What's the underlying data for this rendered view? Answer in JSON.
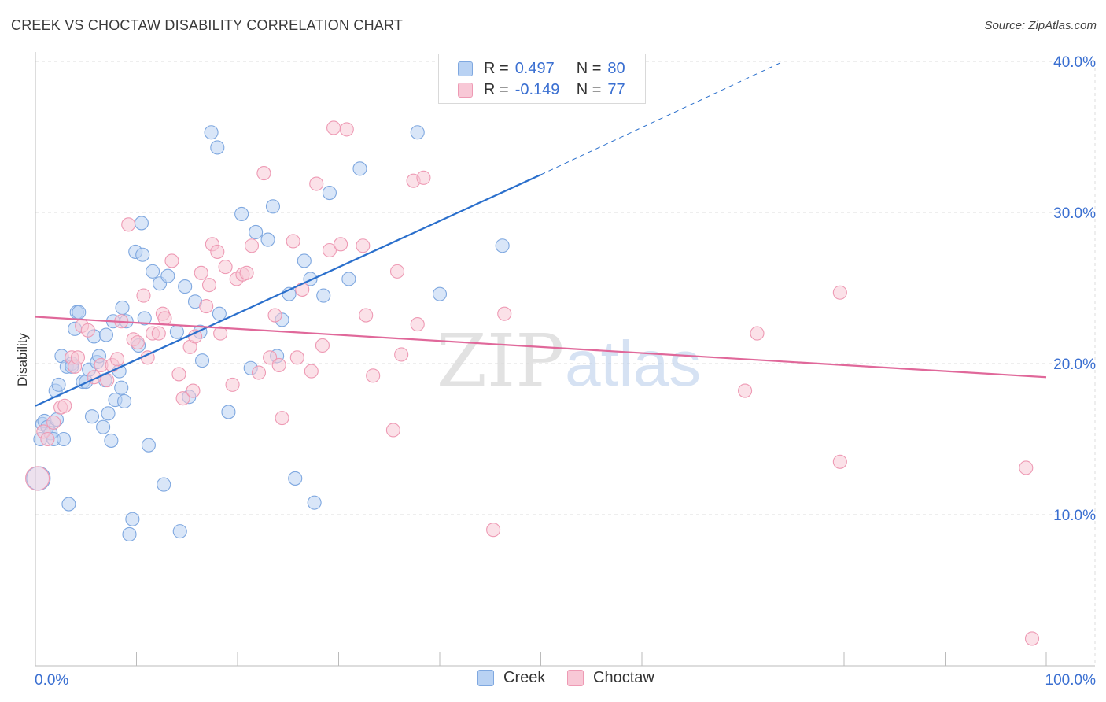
{
  "header": {
    "title": "CREEK VS CHOCTAW DISABILITY CORRELATION CHART",
    "source": "Source: ZipAtlas.com"
  },
  "legend": {
    "rows": [
      {
        "r_label": "R =",
        "r_value": "0.497",
        "n_label": "N =",
        "n_value": "80"
      },
      {
        "r_label": "R =",
        "r_value": "-0.149",
        "n_label": "N =",
        "n_value": "77"
      }
    ]
  },
  "bottom_legend": {
    "items": [
      "Creek",
      "Choctaw"
    ]
  },
  "watermark": "ZIPatlas",
  "colors": {
    "creek_fill": "#b9d2f3",
    "creek_stroke": "#7fa8e0",
    "creek_line": "#2a6fcc",
    "choctaw_fill": "#f8c8d6",
    "choctaw_stroke": "#ee9ab4",
    "choctaw_line": "#e0689a",
    "tick_text": "#3a6fd1",
    "grid": "#dcdcdc"
  },
  "chart_data": {
    "type": "scatter",
    "title": "CREEK VS CHOCTAW DISABILITY CORRELATION CHART",
    "xlabel": "",
    "ylabel": "Disability",
    "xlim": [
      0,
      100
    ],
    "ylim": [
      0,
      40
    ],
    "x_tick_labels": [
      "0.0%",
      "100.0%"
    ],
    "y_ticks": [
      10,
      20,
      30,
      40
    ],
    "y_tick_labels": [
      "10.0%",
      "20.0%",
      "30.0%",
      "40.0%"
    ],
    "series": [
      {
        "name": "Creek",
        "r": 0.497,
        "n": 80,
        "trend": {
          "x0": 0,
          "y0": 17.2,
          "x1": 50,
          "y1": 32.5,
          "dash_to_x": 74,
          "dash_to_y": 40.0
        },
        "points": [
          [
            0.3,
            12.4
          ],
          [
            0.5,
            15
          ],
          [
            0.7,
            16
          ],
          [
            0.9,
            16.2
          ],
          [
            1.2,
            15.8
          ],
          [
            1.5,
            15.4
          ],
          [
            1.8,
            15
          ],
          [
            2,
            18.2
          ],
          [
            2.3,
            18.6
          ],
          [
            2.6,
            20.5
          ],
          [
            2.8,
            15
          ],
          [
            3.1,
            19.8
          ],
          [
            3.3,
            10.7
          ],
          [
            3.6,
            20
          ],
          [
            3.9,
            22.3
          ],
          [
            4.1,
            23.4
          ],
          [
            4.3,
            23.4
          ],
          [
            4.7,
            18.8
          ],
          [
            5,
            18.8
          ],
          [
            5.3,
            19.6
          ],
          [
            5.6,
            16.5
          ],
          [
            5.8,
            21.8
          ],
          [
            6.1,
            20.1
          ],
          [
            6.3,
            20.5
          ],
          [
            6.7,
            15.8
          ],
          [
            7,
            21.9
          ],
          [
            7.2,
            16.7
          ],
          [
            7.5,
            14.9
          ],
          [
            7.7,
            22.8
          ],
          [
            7.9,
            17.6
          ],
          [
            8.3,
            19.5
          ],
          [
            8.5,
            18.4
          ],
          [
            8.6,
            23.7
          ],
          [
            8.8,
            17.5
          ],
          [
            9,
            22.8
          ],
          [
            9.6,
            9.7
          ],
          [
            9.3,
            8.7
          ],
          [
            9.9,
            27.4
          ],
          [
            10.2,
            21.2
          ],
          [
            10.5,
            29.3
          ],
          [
            10.6,
            27.2
          ],
          [
            10.8,
            23
          ],
          [
            11.2,
            14.6
          ],
          [
            11.6,
            26.1
          ],
          [
            12.3,
            25.3
          ],
          [
            12.7,
            12
          ],
          [
            13.1,
            25.8
          ],
          [
            14,
            22.1
          ],
          [
            14.3,
            8.9
          ],
          [
            14.8,
            25.1
          ],
          [
            15.2,
            17.8
          ],
          [
            15.8,
            24.1
          ],
          [
            16.3,
            22.1
          ],
          [
            16.5,
            20.2
          ],
          [
            17.4,
            35.3
          ],
          [
            18,
            34.3
          ],
          [
            18.2,
            23.3
          ],
          [
            19.1,
            16.8
          ],
          [
            20.4,
            29.9
          ],
          [
            21.3,
            19.7
          ],
          [
            21.8,
            28.7
          ],
          [
            23,
            28.2
          ],
          [
            23.5,
            30.4
          ],
          [
            23.9,
            20.5
          ],
          [
            24.4,
            22.9
          ],
          [
            25.1,
            24.6
          ],
          [
            25.7,
            12.4
          ],
          [
            26.6,
            26.8
          ],
          [
            27.2,
            25.6
          ],
          [
            27.6,
            10.8
          ],
          [
            28.5,
            24.5
          ],
          [
            29.1,
            31.3
          ],
          [
            31,
            25.6
          ],
          [
            32.1,
            32.9
          ],
          [
            37.8,
            35.3
          ],
          [
            40,
            24.6
          ],
          [
            46.2,
            27.8
          ],
          [
            2.1,
            16.3
          ],
          [
            6.9,
            18.9
          ],
          [
            3.6,
            19.8
          ]
        ]
      },
      {
        "name": "Choctaw",
        "r": -0.149,
        "n": 77,
        "trend": {
          "x0": 0,
          "y0": 23.1,
          "x1": 100,
          "y1": 19.1
        },
        "points": [
          [
            0.2,
            12.4
          ],
          [
            0.8,
            15.5
          ],
          [
            1.2,
            15
          ],
          [
            1.8,
            16.1
          ],
          [
            2.5,
            17.1
          ],
          [
            2.9,
            17.2
          ],
          [
            3.6,
            20.4
          ],
          [
            3.9,
            19.8
          ],
          [
            4.2,
            20.4
          ],
          [
            4.6,
            22.5
          ],
          [
            5.2,
            22.2
          ],
          [
            5.8,
            19.1
          ],
          [
            6.5,
            19.9
          ],
          [
            7.1,
            18.9
          ],
          [
            7.6,
            19.9
          ],
          [
            8.1,
            20.3
          ],
          [
            8.5,
            22.8
          ],
          [
            9.2,
            29.2
          ],
          [
            9.7,
            21.6
          ],
          [
            10.1,
            21.4
          ],
          [
            10.7,
            24.5
          ],
          [
            11.1,
            20.4
          ],
          [
            11.6,
            22
          ],
          [
            12.2,
            22
          ],
          [
            12.6,
            23.3
          ],
          [
            12.8,
            23
          ],
          [
            13.5,
            26.8
          ],
          [
            14.2,
            19.3
          ],
          [
            14.6,
            17.7
          ],
          [
            15.3,
            21.1
          ],
          [
            15.6,
            18.2
          ],
          [
            15.8,
            21.8
          ],
          [
            16.4,
            26
          ],
          [
            16.9,
            23.8
          ],
          [
            17.2,
            25.2
          ],
          [
            17.5,
            27.9
          ],
          [
            18,
            27.4
          ],
          [
            18.3,
            22
          ],
          [
            18.8,
            26.4
          ],
          [
            19.5,
            18.6
          ],
          [
            19.9,
            25.6
          ],
          [
            20.5,
            25.9
          ],
          [
            20.9,
            26
          ],
          [
            21.4,
            27.8
          ],
          [
            22.1,
            19.4
          ],
          [
            22.6,
            32.6
          ],
          [
            23.2,
            20.4
          ],
          [
            23.7,
            23.2
          ],
          [
            24.1,
            19.9
          ],
          [
            24.4,
            16.4
          ],
          [
            25.5,
            28.1
          ],
          [
            25.9,
            20.4
          ],
          [
            26.4,
            24.9
          ],
          [
            27.3,
            19.5
          ],
          [
            27.8,
            31.9
          ],
          [
            28.4,
            21.2
          ],
          [
            29.1,
            27.5
          ],
          [
            29.5,
            35.6
          ],
          [
            30.2,
            27.9
          ],
          [
            30.8,
            35.5
          ],
          [
            32.4,
            27.8
          ],
          [
            32.7,
            23.2
          ],
          [
            33.4,
            19.2
          ],
          [
            35.4,
            15.6
          ],
          [
            35.8,
            26.1
          ],
          [
            36.2,
            20.6
          ],
          [
            37.4,
            32.1
          ],
          [
            37.8,
            22.6
          ],
          [
            38.4,
            32.3
          ],
          [
            45.3,
            9
          ],
          [
            46.4,
            23.3
          ],
          [
            70.2,
            18.2
          ],
          [
            71.4,
            22
          ],
          [
            79.6,
            13.5
          ],
          [
            79.6,
            24.7
          ],
          [
            98,
            13.1
          ],
          [
            98.6,
            1.8
          ]
        ]
      }
    ]
  }
}
